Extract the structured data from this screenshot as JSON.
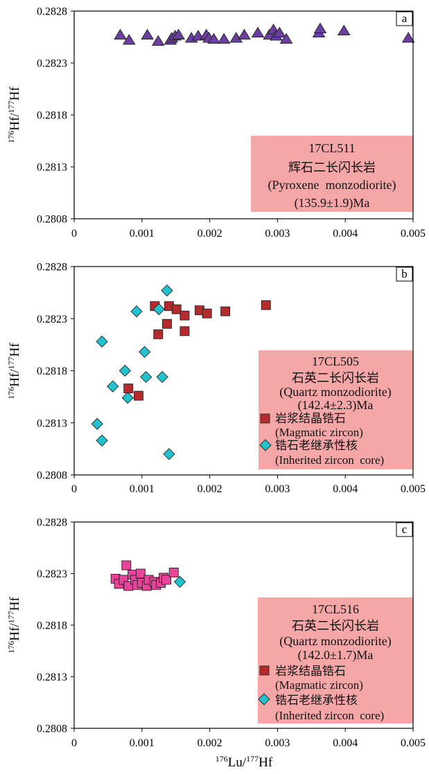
{
  "chart_data": [
    {
      "type": "scatter",
      "panel_label": "a",
      "xlim": [
        0,
        0.005
      ],
      "ylim": [
        0.2808,
        0.2828
      ],
      "xticks": [
        "0",
        "0.001",
        "0.002",
        "0.003",
        "0.004",
        "0.005"
      ],
      "yticks": [
        "0.2808",
        "0.2813",
        "0.2818",
        "0.2823",
        "0.2828"
      ],
      "ylabel_parts": [
        "176",
        "Hf/",
        "177",
        "Hf"
      ],
      "grid": false,
      "annotation_box_color": "#f5a7a8",
      "annotation": [
        "17CL511",
        "辉石二长闪长岩",
        "(Pyroxene  monzodiorite)",
        "(135.9±1.9)Ma"
      ],
      "series": [
        {
          "marker": "triangle",
          "color": "#6b3fa0",
          "x": [
            0.00068,
            0.00081,
            0.00108,
            0.00124,
            0.00142,
            0.00144,
            0.00149,
            0.00154,
            0.00173,
            0.00183,
            0.00195,
            0.00199,
            0.00206,
            0.00221,
            0.00239,
            0.00251,
            0.00271,
            0.00288,
            0.00294,
            0.00298,
            0.00303,
            0.00313,
            0.00361,
            0.00363,
            0.00398,
            0.00493
          ],
          "y": [
            0.28257,
            0.28252,
            0.28257,
            0.28251,
            0.28252,
            0.28254,
            0.28256,
            0.28257,
            0.28254,
            0.28256,
            0.28257,
            0.28254,
            0.28253,
            0.28253,
            0.28254,
            0.28257,
            0.28259,
            0.28257,
            0.28262,
            0.28256,
            0.28259,
            0.28253,
            0.28259,
            0.28263,
            0.28261,
            0.28254
          ]
        }
      ]
    },
    {
      "type": "scatter",
      "panel_label": "b",
      "xlim": [
        0,
        0.005
      ],
      "ylim": [
        0.2808,
        0.2828
      ],
      "xticks": [
        "0",
        "0.001",
        "0.002",
        "0.003",
        "0.004",
        "0.005"
      ],
      "yticks": [
        "0.2808",
        "0.2813",
        "0.2818",
        "0.2823",
        "0.2828"
      ],
      "ylabel_parts": [
        "176",
        "Hf/",
        "177",
        "Hf"
      ],
      "grid": false,
      "legend": "bottom-right",
      "annotation_box_color": "#f5a7a8",
      "annotation": [
        "17CL505",
        "石英二长闪长岩",
        "(Quartz monzodiorite)",
        "(142.4±2.3)Ma"
      ],
      "series": [
        {
          "name": "岩浆结晶锆石",
          "name_en": "(Magmatic zircon)",
          "marker": "square",
          "color": "#b52a2c",
          "legend_color": "#b52a2c",
          "x": [
            0.00119,
            0.0014,
            0.00151,
            0.00163,
            0.00137,
            0.00124,
            0.00163,
            0.00185,
            0.00196,
            0.00223,
            0.00283,
            0.0008,
            0.00095
          ],
          "y": [
            0.28242,
            0.28242,
            0.28239,
            0.28233,
            0.28225,
            0.28215,
            0.28218,
            0.28238,
            0.28235,
            0.28237,
            0.28243,
            0.28163,
            0.28156
          ]
        },
        {
          "name": "锆石老继承性核",
          "name_en": "(Inherited zircon  core)",
          "marker": "diamond",
          "color": "#22c3cf",
          "legend_color": "#22c3cf",
          "x": [
            0.00137,
            0.00125,
            0.00092,
            0.00041,
            0.00104,
            0.00075,
            0.00106,
            0.0013,
            0.00057,
            0.00079,
            0.00034,
            0.00041,
            0.0014
          ],
          "y": [
            0.28257,
            0.28239,
            0.28237,
            0.28208,
            0.28198,
            0.2818,
            0.28174,
            0.28174,
            0.28165,
            0.28154,
            0.28129,
            0.28113,
            0.281
          ]
        }
      ]
    },
    {
      "type": "scatter",
      "panel_label": "c",
      "xlim": [
        0,
        0.005
      ],
      "ylim": [
        0.2808,
        0.2828
      ],
      "xticks": [
        "0",
        "0.001",
        "0.002",
        "0.003",
        "0.004",
        "0.005"
      ],
      "yticks": [
        "0.2808",
        "0.2813",
        "0.2818",
        "0.2823",
        "0.2828"
      ],
      "ylabel_parts": [
        "176",
        "Hf/",
        "177",
        "Hf"
      ],
      "xlabel_parts": [
        "176",
        "Lu/",
        "177",
        "Hf"
      ],
      "grid": false,
      "legend": "bottom-right",
      "annotation_box_color": "#f5a7a8",
      "annotation": [
        "17CL516",
        "石英二长闪长岩",
        "(Quartz monzodiorite)",
        "(142.0±1.7)Ma"
      ],
      "series": [
        {
          "name": "岩浆结晶锆石",
          "name_en": "(Magmatic zircon)",
          "marker": "square",
          "color": "#e8449a",
          "legend_color": "#b52a2c",
          "x": [
            0.00077,
            0.00061,
            0.00066,
            0.00073,
            0.0008,
            0.00086,
            0.0009,
            0.00093,
            0.00098,
            0.001,
            0.00107,
            0.0011,
            0.00118,
            0.00121,
            0.00128,
            0.00132,
            0.00136,
            0.00147
          ],
          "y": [
            0.28238,
            0.28225,
            0.2822,
            0.28224,
            0.28218,
            0.28229,
            0.28224,
            0.28219,
            0.2823,
            0.28221,
            0.28218,
            0.28224,
            0.28222,
            0.28219,
            0.28221,
            0.28226,
            0.28224,
            0.28231
          ]
        },
        {
          "name": "锆石老继承性核",
          "name_en": "(Inherited zircon  core)",
          "marker": "diamond",
          "color": "#22c3cf",
          "legend_color": "#22c3cf",
          "x": [
            0.00156
          ],
          "y": [
            0.28222
          ]
        }
      ]
    }
  ]
}
